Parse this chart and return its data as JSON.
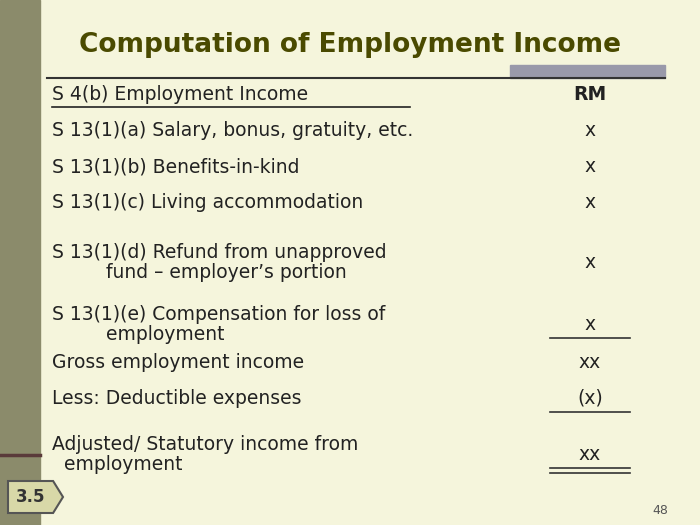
{
  "title": "Computation of Employment Income",
  "title_color": "#4a4a00",
  "title_fontsize": 19,
  "background_color": "#f5f5dc",
  "left_bar_color": "#8b8b6b",
  "left_bar_width": 0.057,
  "slide_number": "48",
  "badge_text": "3.5",
  "badge_bg": "#d8d8a8",
  "badge_border": "#555555",
  "rows": [
    {
      "left": "S 4(b) Employment Income",
      "right": "RM",
      "underline_left": true,
      "right_bold": true,
      "right_italic": false,
      "line_below_right": false,
      "double_line": false,
      "two_lines": false
    },
    {
      "left": "S 13(1)(a) Salary, bonus, gratuity, etc.",
      "right": "x",
      "underline_left": false,
      "right_bold": false,
      "right_italic": false,
      "line_below_right": false,
      "double_line": false,
      "two_lines": false
    },
    {
      "left": "S 13(1)(b) Benefits-in-kind",
      "right": "x",
      "underline_left": false,
      "right_bold": false,
      "right_italic": false,
      "line_below_right": false,
      "double_line": false,
      "two_lines": false
    },
    {
      "left": "S 13(1)(c) Living accommodation",
      "right": "x",
      "underline_left": false,
      "right_bold": false,
      "right_italic": false,
      "line_below_right": false,
      "double_line": false,
      "two_lines": false
    },
    {
      "left": "S 13(1)(d) Refund from unapproved",
      "left2": "         fund – employer’s portion",
      "right": "x",
      "underline_left": false,
      "right_bold": false,
      "right_italic": false,
      "line_below_right": false,
      "double_line": false,
      "two_lines": true
    },
    {
      "left": "S 13(1)(e) Compensation for loss of",
      "left2": "         employment",
      "right": "x",
      "underline_left": false,
      "right_bold": false,
      "right_italic": false,
      "line_below_right": true,
      "double_line": false,
      "two_lines": true
    },
    {
      "left": "Gross employment income",
      "right": "xx",
      "underline_left": false,
      "right_bold": false,
      "right_italic": false,
      "line_below_right": false,
      "double_line": false,
      "two_lines": false
    },
    {
      "left": "Less: Deductible expenses",
      "right": "(x)",
      "underline_left": false,
      "right_bold": false,
      "right_italic": false,
      "line_below_right": true,
      "double_line": false,
      "two_lines": false
    },
    {
      "left": "Adjusted/ Statutory income from",
      "left2": "  employment",
      "right": "xx",
      "underline_left": false,
      "right_bold": false,
      "right_italic": false,
      "line_below_right": true,
      "double_line": true,
      "two_lines": true
    }
  ],
  "top_bar_color": "#9999aa",
  "text_color": "#222222",
  "font_family": "DejaVu Sans"
}
